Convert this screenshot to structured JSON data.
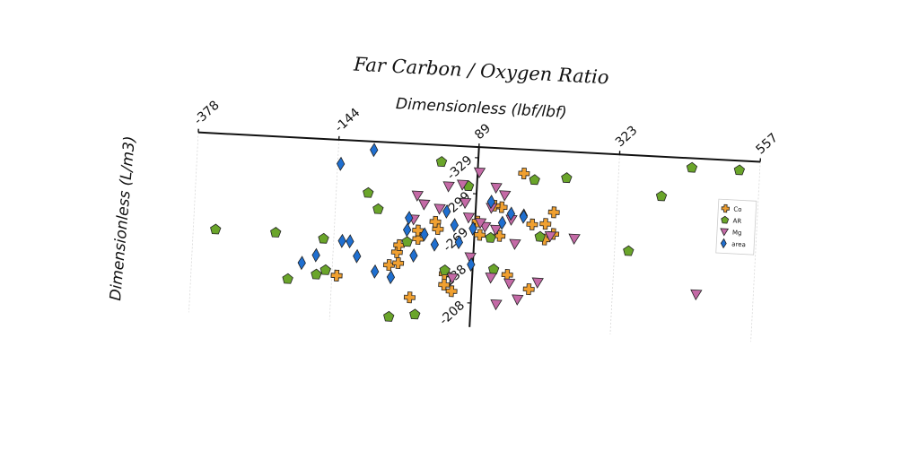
{
  "chart_data": {
    "type": "scatter",
    "title": "Far Carbon / Oxygen Ratio",
    "xlabel": "Dimensionless (lbf/lbf)",
    "ylabel": "Dimensionless (L/m3)",
    "xlim": [
      -378,
      557
    ],
    "ylim": [
      -329,
      -188
    ],
    "x_ticks": [
      "-378",
      "-144",
      "89",
      "323",
      "557"
    ],
    "y_ticks": [
      "-208",
      "-238",
      "-269",
      "-299",
      "-329"
    ],
    "legend_position": "top-right",
    "grid": true,
    "colors": {
      "Co": "#f0a030",
      "AR": "#6aa52a",
      "Mg": "#c46aa6",
      "area": "#1f6fd0"
    },
    "series": [
      {
        "name": "Co",
        "marker": "plus",
        "points": [
          [
            -136,
            -225
          ],
          [
            -136,
            -225
          ],
          [
            -50,
            -236
          ],
          [
            -38,
            -247
          ],
          [
            -13,
            -210
          ],
          [
            -4,
            -259
          ],
          [
            28,
            -268
          ],
          [
            23,
            -274
          ],
          [
            -35,
            -253
          ],
          [
            -5,
            -266
          ],
          [
            56,
            -217
          ],
          [
            43,
            -222
          ],
          [
            43,
            -231
          ],
          [
            -35,
            -238
          ],
          [
            98,
            -265
          ],
          [
            93,
            -276
          ],
          [
            131,
            -265
          ],
          [
            184,
            -222
          ],
          [
            220,
            -269
          ],
          [
            206,
            -264
          ],
          [
            206,
            -277
          ],
          [
            219,
            -287
          ],
          [
            184,
            -276
          ],
          [
            132,
            -289
          ],
          [
            120,
            -290
          ],
          [
            147,
            -233
          ],
          [
            166,
            -318
          ]
        ]
      },
      {
        "name": "AR",
        "marker": "pentagon",
        "points": [
          [
            -341,
            -258
          ],
          [
            -217,
            -220
          ],
          [
            -241,
            -258
          ],
          [
            -170,
            -225
          ],
          [
            -155,
            -229
          ],
          [
            -161,
            -255
          ],
          [
            -73,
            -282
          ],
          [
            -22,
            -256
          ],
          [
            -3,
            -196
          ],
          [
            -46,
            -193
          ],
          [
            -91,
            -295
          ],
          [
            43,
            -234
          ],
          [
            75,
            -305
          ],
          [
            124,
            -237
          ],
          [
            198,
            -266
          ],
          [
            237,
            -316
          ],
          [
            346,
            -258
          ],
          [
            396,
            -305
          ],
          [
            444,
            -330
          ],
          [
            523,
            -330
          ],
          [
            184,
            -313
          ],
          [
            116,
            -263
          ],
          [
            28,
            -324
          ]
        ]
      },
      {
        "name": "Mg",
        "marker": "triangle-down",
        "points": [
          [
            166,
            -213
          ],
          [
            131,
            -208
          ],
          [
            120,
            -230
          ],
          [
            151,
            -226
          ],
          [
            198,
            -228
          ],
          [
            215,
            -267
          ],
          [
            255,
            -266
          ],
          [
            157,
            -259
          ],
          [
            149,
            -279
          ],
          [
            124,
            -270
          ],
          [
            106,
            -272
          ],
          [
            78,
            -279
          ],
          [
            71,
            -291
          ],
          [
            65,
            -306
          ],
          [
            92,
            -317
          ],
          [
            121,
            -305
          ],
          [
            136,
            -299
          ],
          [
            115,
            -288
          ],
          [
            98,
            -275
          ],
          [
            29,
            -285
          ],
          [
            42,
            -304
          ],
          [
            3,
            -288
          ],
          [
            -9,
            -295
          ],
          [
            -13,
            -275
          ],
          [
            56,
            -228
          ],
          [
            84,
            -246
          ],
          [
            462,
            -225
          ]
        ]
      },
      {
        "name": "area",
        "marker": "diamond",
        "points": [
          [
            -195,
            -234
          ],
          [
            -172,
            -241
          ],
          [
            -130,
            -254
          ],
          [
            -117,
            -254
          ],
          [
            -104,
            -242
          ],
          [
            -73,
            -230
          ],
          [
            -46,
            -226
          ],
          [
            -10,
            -245
          ],
          [
            24,
            -255
          ],
          [
            6,
            -263
          ],
          [
            64,
            -258
          ],
          [
            86,
            -240
          ],
          [
            86,
            -270
          ],
          [
            41,
            -283
          ],
          [
            55,
            -272
          ],
          [
            -23,
            -266
          ],
          [
            -21,
            -276
          ],
          [
            134,
            -276
          ],
          [
            148,
            -284
          ],
          [
            169,
            -283
          ],
          [
            169,
            -282
          ],
          [
            114,
            -293
          ],
          [
            -85,
            -331
          ],
          [
            -139,
            -318
          ]
        ]
      }
    ]
  }
}
